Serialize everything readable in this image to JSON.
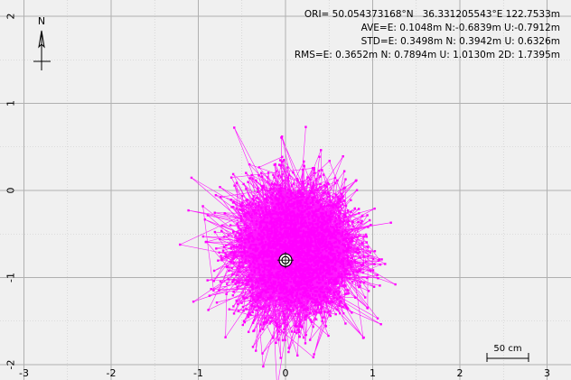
{
  "stats": {
    "ori": "ORI= 50.054373168°N   36.331205543°E 122.7533m",
    "ave": "AVE=E: 0.1048m N:-0.6839m U:-0.7912m",
    "std": "STD=E: 0.3498m N: 0.3942m U: 0.6326m",
    "rms": "RMS=E: 0.3652m N: 0.7894m U: 1.0130m 2D: 1.7395m"
  },
  "north_label": "N",
  "scale_label": "50 cm",
  "colors": {
    "points": "#ff00ff",
    "grid": "#c8c8c8",
    "axis": "#b0b0b0",
    "background": "#f0f0f0"
  },
  "chart_data": {
    "type": "scatter",
    "xlim": [
      -3.1,
      3.25
    ],
    "ylim": [
      -2.1,
      2.1
    ],
    "x_ticks": [
      "-3",
      "-2",
      "-1",
      "0",
      "1",
      "2",
      "3"
    ],
    "y_ticks": [
      "-2",
      "-1",
      "0",
      "1",
      "2"
    ],
    "grid": true,
    "series_summary": {
      "center_e": 0.1048,
      "center_n": -0.6839,
      "std_e": 0.3498,
      "std_n": 0.3942,
      "count": 3000
    },
    "mean_marker": [
      0.0,
      -0.8
    ]
  }
}
